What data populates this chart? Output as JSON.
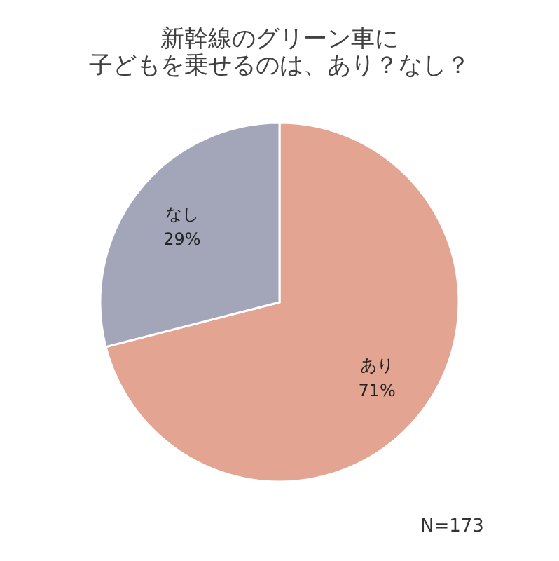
{
  "chart_data": {
    "type": "pie",
    "title": "新幹線のグリーン車に",
    "subtitle": "子どもを乗せるのは、あり？なし？",
    "categories": [
      "あり",
      "なし"
    ],
    "values": [
      71,
      29
    ],
    "value_labels": [
      "71%",
      "29%"
    ],
    "colors": [
      "#e3a592",
      "#a3a6b8"
    ],
    "annotations": [
      "N=173"
    ]
  }
}
